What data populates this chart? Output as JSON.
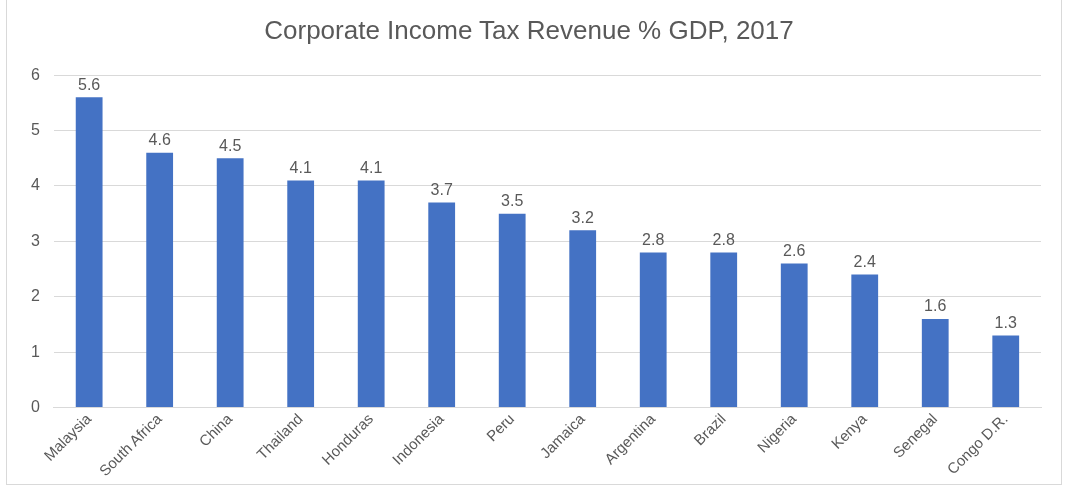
{
  "chart_data": {
    "type": "bar",
    "title": "Corporate Income Tax Revenue % GDP, 2017",
    "categories": [
      "Malaysia",
      "South Africa",
      "China",
      "Thailand",
      "Honduras",
      "Indonesia",
      "Peru",
      "Jamaica",
      "Argentina",
      "Brazil",
      "Nigeria",
      "Kenya",
      "Senegal",
      "Congo D.R."
    ],
    "values": [
      5.6,
      4.6,
      4.5,
      4.1,
      4.1,
      3.7,
      3.5,
      3.2,
      2.8,
      2.8,
      2.6,
      2.4,
      1.6,
      1.3
    ],
    "color": "#4472c4",
    "ylim": [
      0,
      6
    ],
    "yticks": [
      0,
      1,
      2,
      3,
      4,
      5,
      6
    ],
    "grid": "y",
    "data_labels": true,
    "legend": false
  }
}
